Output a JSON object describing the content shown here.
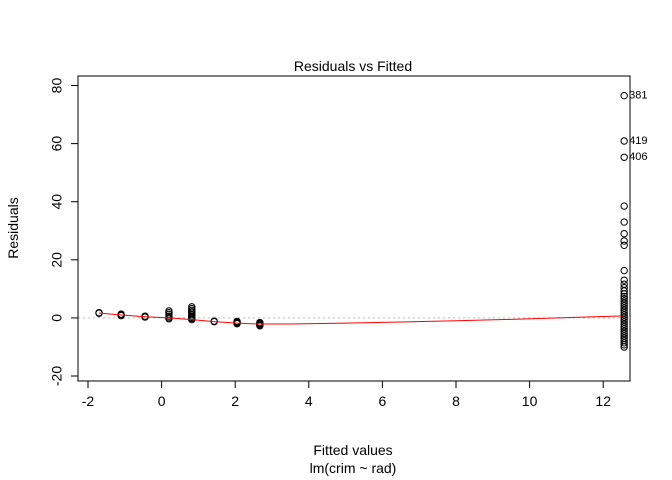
{
  "chart_data": {
    "type": "scatter",
    "title": "Residuals vs Fitted",
    "xlabel": "Fitted values",
    "sublabel": "lm(crim ~ rad)",
    "ylabel": "Residuals",
    "xlim": [
      -2,
      13
    ],
    "ylim": [
      -20,
      85
    ],
    "x_ticks": [
      -2,
      0,
      2,
      4,
      6,
      8,
      10,
      12
    ],
    "y_ticks": [
      -20,
      0,
      20,
      40,
      60,
      80
    ],
    "grid": false,
    "zero_line": true,
    "colors": {
      "points": "#000000",
      "smooth": "#ff0000",
      "zero_line": "#bebebe"
    },
    "points": [
      [
        -1.7,
        1.8
      ],
      [
        -1.7,
        1.6
      ],
      [
        -1.1,
        1.3
      ],
      [
        -1.1,
        1.0
      ],
      [
        -1.1,
        0.8
      ],
      [
        -0.45,
        0.6
      ],
      [
        -0.45,
        0.3
      ],
      [
        0.2,
        2.4
      ],
      [
        0.2,
        1.8
      ],
      [
        0.2,
        1.2
      ],
      [
        0.2,
        0.6
      ],
      [
        0.2,
        0.1
      ],
      [
        0.2,
        -0.3
      ],
      [
        0.82,
        3.8
      ],
      [
        0.82,
        3.2
      ],
      [
        0.82,
        2.6
      ],
      [
        0.82,
        2.1
      ],
      [
        0.82,
        1.6
      ],
      [
        0.82,
        1.1
      ],
      [
        0.82,
        0.6
      ],
      [
        0.82,
        0.2
      ],
      [
        0.82,
        -0.2
      ],
      [
        0.82,
        -0.6
      ],
      [
        1.43,
        -1.1
      ],
      [
        1.43,
        -1.3
      ],
      [
        2.05,
        -1.2
      ],
      [
        2.05,
        -1.5
      ],
      [
        2.05,
        -1.8
      ],
      [
        2.05,
        -2.0
      ],
      [
        2.67,
        -1.6
      ],
      [
        2.67,
        -1.9
      ],
      [
        2.67,
        -2.2
      ],
      [
        2.67,
        -2.5
      ],
      [
        2.67,
        -2.7
      ],
      [
        12.57,
        76.5
      ],
      [
        12.57,
        60.9
      ],
      [
        12.57,
        55.3
      ],
      [
        12.57,
        38.5
      ],
      [
        12.57,
        33.0
      ],
      [
        12.57,
        29.0
      ],
      [
        12.57,
        26.5
      ],
      [
        12.57,
        25.0
      ],
      [
        12.57,
        16.3
      ],
      [
        12.57,
        13.0
      ],
      [
        12.57,
        11.6
      ],
      [
        12.57,
        10.4
      ],
      [
        12.57,
        9.3
      ],
      [
        12.57,
        8.3
      ],
      [
        12.57,
        7.4
      ],
      [
        12.57,
        6.6
      ],
      [
        12.57,
        5.8
      ],
      [
        12.57,
        5.0
      ],
      [
        12.57,
        4.2
      ],
      [
        12.57,
        3.4
      ],
      [
        12.57,
        2.6
      ],
      [
        12.57,
        1.8
      ],
      [
        12.57,
        1.0
      ],
      [
        12.57,
        0.2
      ],
      [
        12.57,
        -0.6
      ],
      [
        12.57,
        -1.4
      ],
      [
        12.57,
        -2.2
      ],
      [
        12.57,
        -3.0
      ],
      [
        12.57,
        -3.8
      ],
      [
        12.57,
        -4.6
      ],
      [
        12.57,
        -5.4
      ],
      [
        12.57,
        -6.2
      ],
      [
        12.57,
        -7.0
      ],
      [
        12.57,
        -7.8
      ],
      [
        12.57,
        -8.6
      ],
      [
        12.57,
        -9.3
      ],
      [
        12.57,
        -10.0
      ]
    ],
    "labeled_points": [
      {
        "label": "381",
        "x": 12.57,
        "y": 76.5
      },
      {
        "label": "419",
        "x": 12.57,
        "y": 60.9
      },
      {
        "label": "406",
        "x": 12.57,
        "y": 55.3
      }
    ],
    "smooth_line": [
      [
        -1.7,
        1.7
      ],
      [
        -1.1,
        1.0
      ],
      [
        -0.45,
        0.4
      ],
      [
        0.2,
        0.0
      ],
      [
        0.82,
        -0.6
      ],
      [
        1.43,
        -1.3
      ],
      [
        2.05,
        -1.8
      ],
      [
        2.67,
        -2.1
      ],
      [
        3.5,
        -2.1
      ],
      [
        5.0,
        -1.8
      ],
      [
        6.5,
        -1.4
      ],
      [
        8.0,
        -1.0
      ],
      [
        9.5,
        -0.5
      ],
      [
        11.0,
        0.1
      ],
      [
        12.57,
        0.7
      ]
    ]
  }
}
